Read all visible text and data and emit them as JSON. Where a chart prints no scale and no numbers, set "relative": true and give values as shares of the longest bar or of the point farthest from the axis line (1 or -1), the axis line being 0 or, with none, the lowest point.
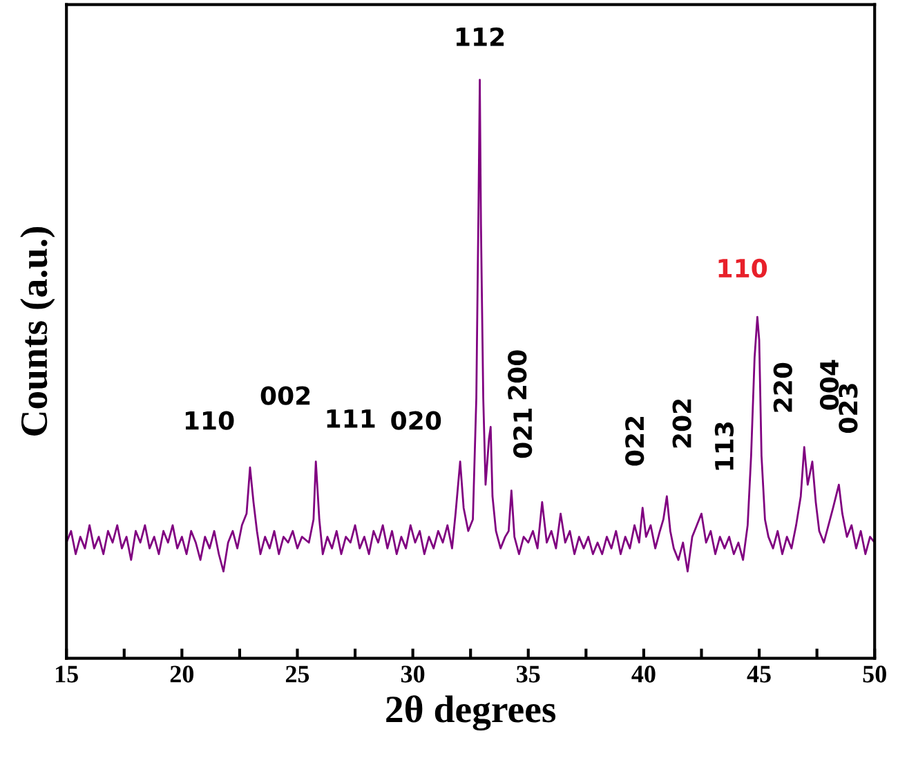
{
  "chart_data": {
    "type": "line",
    "relative": true,
    "xlabel": "2θ degrees",
    "ylabel": "Counts (a.u.)",
    "xlim": [
      15,
      50
    ],
    "xticks": [
      15,
      {
        "value": 17.5,
        "label": null
      },
      20,
      {
        "value": 22.5,
        "label": null
      },
      25,
      {
        "value": 27.5,
        "label": null
      },
      30,
      {
        "value": 32.5,
        "label": null
      },
      35,
      {
        "value": 37.5,
        "label": null
      },
      40,
      {
        "value": 42.5,
        "label": null
      },
      45,
      {
        "value": 47.5,
        "label": null
      },
      50
    ],
    "grid": false,
    "legend": false,
    "marker": "none",
    "line_style": "solid",
    "series": [
      {
        "color": "#800080",
        "x": [
          15.0,
          15.2,
          15.4,
          15.6,
          15.8,
          16.0,
          16.2,
          16.4,
          16.6,
          16.8,
          17.0,
          17.2,
          17.4,
          17.6,
          17.8,
          18.0,
          18.2,
          18.4,
          18.6,
          18.8,
          19.0,
          19.2,
          19.4,
          19.6,
          19.8,
          20.0,
          20.2,
          20.4,
          20.6,
          20.8,
          21.0,
          21.2,
          21.4,
          21.6,
          21.8,
          22.0,
          22.2,
          22.4,
          22.6,
          22.8,
          22.95,
          23.1,
          23.25,
          23.4,
          23.6,
          23.8,
          24.0,
          24.2,
          24.4,
          24.6,
          24.8,
          25.0,
          25.2,
          25.5,
          25.7,
          25.8,
          25.95,
          26.1,
          26.3,
          26.5,
          26.7,
          26.9,
          27.1,
          27.3,
          27.5,
          27.7,
          27.9,
          28.1,
          28.3,
          28.5,
          28.7,
          28.9,
          29.1,
          29.3,
          29.5,
          29.7,
          29.9,
          30.1,
          30.3,
          30.5,
          30.7,
          30.9,
          31.1,
          31.3,
          31.5,
          31.7,
          31.85,
          32.05,
          32.2,
          32.4,
          32.6,
          32.75,
          32.85,
          32.9,
          32.95,
          33.05,
          33.15,
          33.3,
          33.37,
          33.45,
          33.6,
          33.8,
          34.0,
          34.15,
          34.27,
          34.4,
          34.6,
          34.8,
          35.0,
          35.2,
          35.4,
          35.6,
          35.8,
          36.0,
          36.2,
          36.4,
          36.6,
          36.8,
          37.0,
          37.2,
          37.4,
          37.6,
          37.8,
          38.0,
          38.2,
          38.4,
          38.6,
          38.8,
          39.0,
          39.2,
          39.4,
          39.6,
          39.8,
          39.95,
          40.1,
          40.3,
          40.5,
          40.7,
          40.85,
          41.0,
          41.15,
          41.3,
          41.5,
          41.7,
          41.9,
          42.1,
          42.3,
          42.5,
          42.7,
          42.9,
          43.1,
          43.3,
          43.5,
          43.7,
          43.9,
          44.1,
          44.3,
          44.5,
          44.65,
          44.8,
          44.92,
          45.0,
          45.1,
          45.25,
          45.4,
          45.6,
          45.8,
          46.0,
          46.2,
          46.4,
          46.6,
          46.8,
          46.95,
          47.1,
          47.3,
          47.45,
          47.6,
          47.8,
          48.0,
          48.2,
          48.45,
          48.6,
          48.8,
          49.0,
          49.2,
          49.4,
          49.6,
          49.8,
          50.0
        ],
        "values": [
          0.2,
          0.22,
          0.18,
          0.21,
          0.19,
          0.23,
          0.19,
          0.21,
          0.18,
          0.22,
          0.2,
          0.23,
          0.19,
          0.21,
          0.17,
          0.22,
          0.2,
          0.23,
          0.19,
          0.21,
          0.18,
          0.22,
          0.2,
          0.23,
          0.19,
          0.21,
          0.18,
          0.22,
          0.2,
          0.17,
          0.21,
          0.19,
          0.22,
          0.18,
          0.15,
          0.2,
          0.22,
          0.19,
          0.23,
          0.25,
          0.33,
          0.27,
          0.22,
          0.18,
          0.21,
          0.19,
          0.22,
          0.18,
          0.21,
          0.2,
          0.22,
          0.19,
          0.21,
          0.2,
          0.24,
          0.34,
          0.24,
          0.18,
          0.21,
          0.19,
          0.22,
          0.18,
          0.21,
          0.2,
          0.23,
          0.19,
          0.21,
          0.18,
          0.22,
          0.2,
          0.23,
          0.19,
          0.22,
          0.18,
          0.21,
          0.19,
          0.23,
          0.2,
          0.22,
          0.18,
          0.21,
          0.19,
          0.22,
          0.2,
          0.23,
          0.19,
          0.25,
          0.34,
          0.26,
          0.22,
          0.24,
          0.45,
          0.8,
          1.0,
          0.75,
          0.45,
          0.3,
          0.38,
          0.4,
          0.28,
          0.22,
          0.19,
          0.21,
          0.22,
          0.29,
          0.21,
          0.18,
          0.21,
          0.2,
          0.22,
          0.19,
          0.27,
          0.2,
          0.22,
          0.19,
          0.25,
          0.2,
          0.22,
          0.18,
          0.21,
          0.19,
          0.21,
          0.18,
          0.2,
          0.18,
          0.21,
          0.19,
          0.22,
          0.18,
          0.21,
          0.19,
          0.23,
          0.2,
          0.26,
          0.21,
          0.23,
          0.19,
          0.22,
          0.24,
          0.28,
          0.22,
          0.19,
          0.17,
          0.2,
          0.15,
          0.21,
          0.23,
          0.25,
          0.2,
          0.22,
          0.18,
          0.21,
          0.19,
          0.21,
          0.18,
          0.2,
          0.17,
          0.23,
          0.35,
          0.52,
          0.59,
          0.55,
          0.35,
          0.24,
          0.21,
          0.19,
          0.22,
          0.18,
          0.21,
          0.19,
          0.23,
          0.28,
          0.365,
          0.3,
          0.34,
          0.27,
          0.22,
          0.2,
          0.23,
          0.26,
          0.3,
          0.25,
          0.21,
          0.23,
          0.19,
          0.22,
          0.18,
          0.21,
          0.2
        ]
      }
    ],
    "annotations": [
      {
        "text": "110",
        "x": 23.0,
        "y": 0.33
      },
      {
        "text": "002",
        "x": 23.0,
        "y": 0.33
      },
      {
        "text": "111",
        "x": 25.8,
        "y": 0.34
      },
      {
        "text": "020",
        "x": 32.05,
        "y": 0.34
      },
      {
        "text": "112",
        "x": 32.9,
        "y": 1.0
      },
      {
        "text": "200",
        "x": 33.37,
        "y": 0.4
      },
      {
        "text": "021",
        "x": 34.27,
        "y": 0.29
      },
      {
        "text": "022",
        "x": 39.95,
        "y": 0.26
      },
      {
        "text": "202",
        "x": 41.0,
        "y": 0.28
      },
      {
        "text": "113",
        "x": 42.5,
        "y": 0.25
      },
      {
        "text": "110",
        "x": 44.92,
        "y": 0.59
      },
      {
        "text": "220",
        "x": 46.95,
        "y": 0.365
      },
      {
        "text": "004",
        "x": 47.3,
        "y": 0.34
      },
      {
        "text": "023",
        "x": 48.45,
        "y": 0.3
      }
    ]
  }
}
